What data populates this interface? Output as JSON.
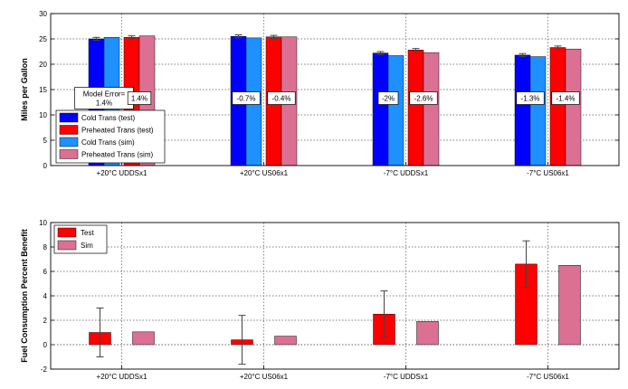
{
  "chart_data": [
    {
      "type": "bar",
      "ylabel": "Miles per Gallon",
      "ylim": [
        0,
        30
      ],
      "yticks": [
        0,
        5,
        10,
        15,
        20,
        25,
        30
      ],
      "grid": "dotted",
      "legend_position": "bottom-left",
      "categories": [
        "+20°C UDDSx1",
        "+20°C US06x1",
        "-7°C UDDSx1",
        "-7°C US06x1"
      ],
      "series": [
        {
          "name": "Cold Trans (test)",
          "color": "#0000ff",
          "values": [
            25.0,
            25.5,
            22.2,
            21.8
          ],
          "error": [
            0.3,
            0.3,
            0.3,
            0.3
          ]
        },
        {
          "name": "Preheated Trans (test)",
          "color": "#ff0000",
          "values": [
            25.3,
            25.4,
            22.8,
            23.3
          ],
          "error": [
            0.3,
            0.3,
            0.3,
            0.3
          ]
        },
        {
          "name": "Cold Trans (sim)",
          "color": "#1e90ff",
          "values": [
            25.3,
            25.2,
            21.7,
            21.5
          ]
        },
        {
          "name": "Preheated Trans (sim)",
          "color": "#db7093",
          "values": [
            25.6,
            25.4,
            22.3,
            23.0
          ]
        }
      ],
      "annotations": [
        {
          "category": 0,
          "pair": "cold",
          "lines": [
            "Model Error=",
            "1.4%"
          ]
        },
        {
          "category": 0,
          "pair": "preheated",
          "lines": [
            "1.4%"
          ]
        },
        {
          "category": 1,
          "pair": "cold",
          "lines": [
            "-0.7%"
          ]
        },
        {
          "category": 1,
          "pair": "preheated",
          "lines": [
            "-0.4%"
          ]
        },
        {
          "category": 2,
          "pair": "cold",
          "lines": [
            "-2%"
          ]
        },
        {
          "category": 2,
          "pair": "preheated",
          "lines": [
            "-2.6%"
          ]
        },
        {
          "category": 3,
          "pair": "cold",
          "lines": [
            "-1.3%"
          ]
        },
        {
          "category": 3,
          "pair": "preheated",
          "lines": [
            "-1.4%"
          ]
        }
      ]
    },
    {
      "type": "bar",
      "ylabel": "Fuel Consumption Percent Benefit",
      "ylim": [
        -2,
        10
      ],
      "yticks": [
        -2,
        0,
        2,
        4,
        6,
        8,
        10
      ],
      "grid": "dotted",
      "legend_position": "top-left",
      "categories": [
        "+20°C UDDSx1",
        "+20°C US06x1",
        "-7°C UDDSx1",
        "-7°C US06x1"
      ],
      "series": [
        {
          "name": "Test",
          "color": "#ff0000",
          "values": [
            1.0,
            0.4,
            2.5,
            6.6
          ],
          "error": [
            2.0,
            2.0,
            1.9,
            1.9
          ]
        },
        {
          "name": "Sim",
          "color": "#db7093",
          "values": [
            1.05,
            0.7,
            1.9,
            6.5
          ]
        }
      ]
    }
  ]
}
